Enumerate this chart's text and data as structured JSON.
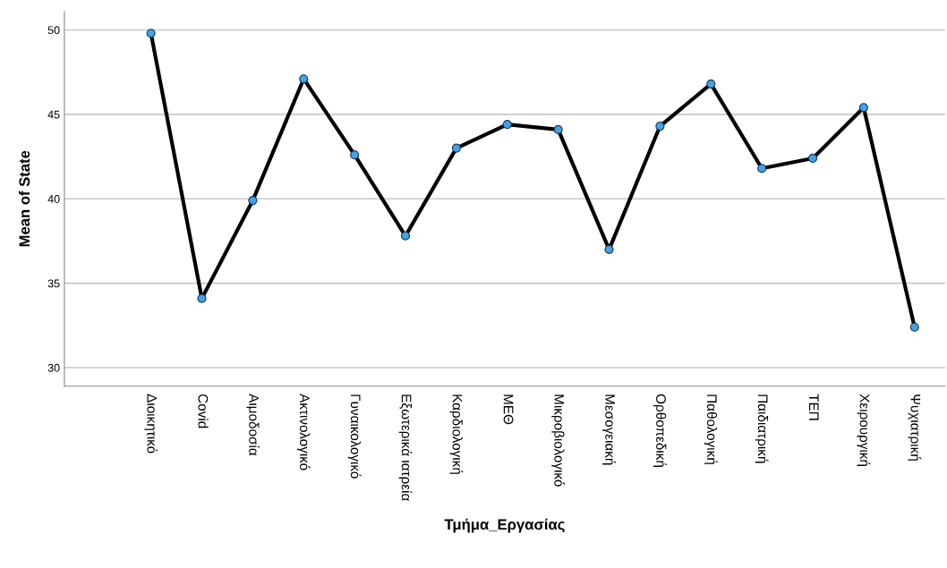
{
  "chart_data": {
    "type": "line",
    "xlabel": "Τμήμα_Εργασίας",
    "ylabel": "Mean of State",
    "categories": [
      "Διοικητικό",
      "Covid",
      "Αιμοδοσία",
      "Ακτινολογικό",
      "Γυναικολογικό",
      "Εξωτερικά ιατρεία",
      "Καρδιολογική",
      "ΜΕΘ",
      "Μικροβιολογικό",
      "Μεσογειακή",
      "Ορθοπεδική",
      "Παθολογική",
      "Παιδιατρική",
      "ΤΕΠ",
      "Χειρουργική",
      "Ψυχιατρική"
    ],
    "series": [
      {
        "color": "#000000",
        "values": [
          49.8,
          34.1,
          39.9,
          47.1,
          42.6,
          37.8,
          43.0,
          44.4,
          44.1,
          37.0,
          44.3,
          46.8,
          41.8,
          42.4,
          45.4,
          32.4
        ]
      }
    ],
    "ylim": [
      28.9,
      51.1
    ],
    "yticks": [
      30,
      35,
      40,
      45,
      50
    ],
    "grid": "y",
    "marker": "circle",
    "line_style": "solid",
    "legend": false
  }
}
